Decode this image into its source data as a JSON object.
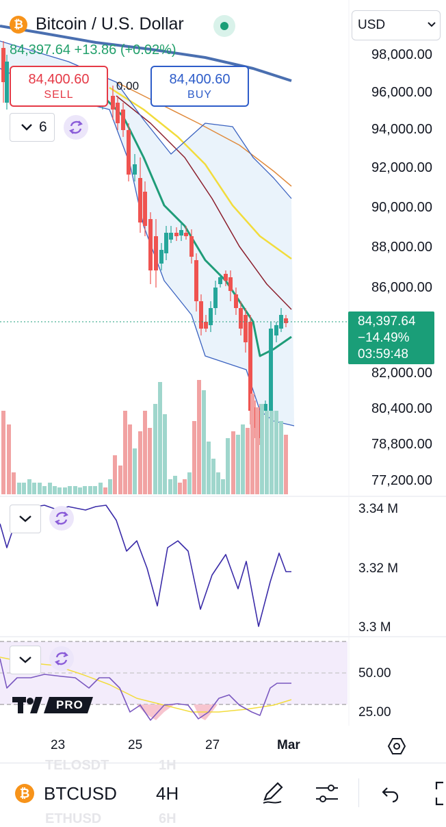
{
  "header": {
    "symbol_title": "Bitcoin / U.S. Dollar",
    "price_change": "84,397.64 +13.86 (+0.02%)",
    "currency_select": "USD",
    "sell": {
      "price": "84,400.60",
      "label": "SELL"
    },
    "buy": {
      "price": "84,400.60",
      "label": "BUY"
    },
    "spread": "0.00",
    "indicators_count": "6"
  },
  "price_axis": [
    "98,000.00",
    "96,000.00",
    "94,000.00",
    "92,000.00",
    "90,000.00",
    "88,000.00",
    "86,000.00",
    "82,000.00",
    "80,400.00",
    "78,800.00",
    "77,200.00"
  ],
  "last_price_tag": {
    "price": "84,397.64",
    "change": "−14.49%",
    "countdown": "03:59:48"
  },
  "indicator_pane_1": {
    "axis": [
      "3.34 M",
      "3.32 M",
      "3.3 M"
    ]
  },
  "indicator_pane_2": {
    "axis": [
      "50.00",
      "25.00"
    ]
  },
  "watermark": "PRO",
  "time_axis": [
    "23",
    "25",
    "27",
    "Mar"
  ],
  "toolbar": {
    "symbol": "BTCUSD",
    "interval": "4H",
    "ghost_row_1": [
      "TELOSDT",
      "1H"
    ],
    "ghost_row_2": [
      "ETHUSD",
      "6H"
    ]
  },
  "colors": {
    "up": "#26a69a",
    "down": "#ef5350",
    "accent": "#2962ff",
    "bitcoin": "#f7931a",
    "sell": "#e53946",
    "buy": "#2d5cc9"
  },
  "icons": [
    "bitcoin-icon",
    "status-dot-icon",
    "chevron-down-icon",
    "refresh-icon",
    "gear-hexagon-icon",
    "pencil-icon",
    "sliders-icon",
    "undo-icon"
  ]
}
